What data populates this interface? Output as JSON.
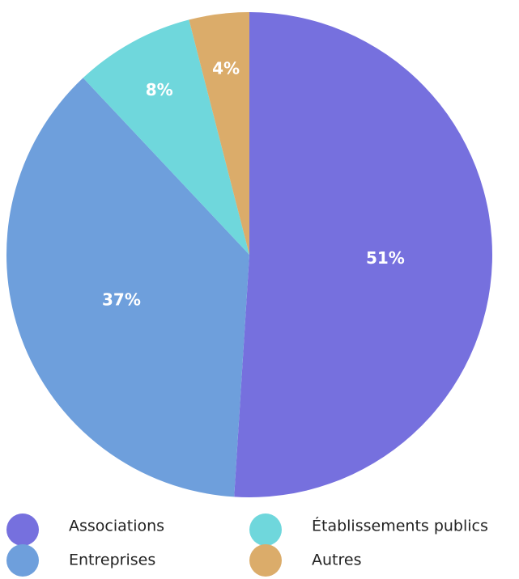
{
  "chart_data": {
    "type": "pie",
    "categories": [
      "Associations",
      "Entreprises",
      "Établissements publics",
      "Autres"
    ],
    "values": [
      51,
      37,
      8,
      4
    ],
    "value_labels": [
      "51%",
      "37%",
      "8%",
      "4%"
    ],
    "colors": [
      "#7670de",
      "#6e9fdc",
      "#6fd7dc",
      "#dbac6a"
    ]
  }
}
